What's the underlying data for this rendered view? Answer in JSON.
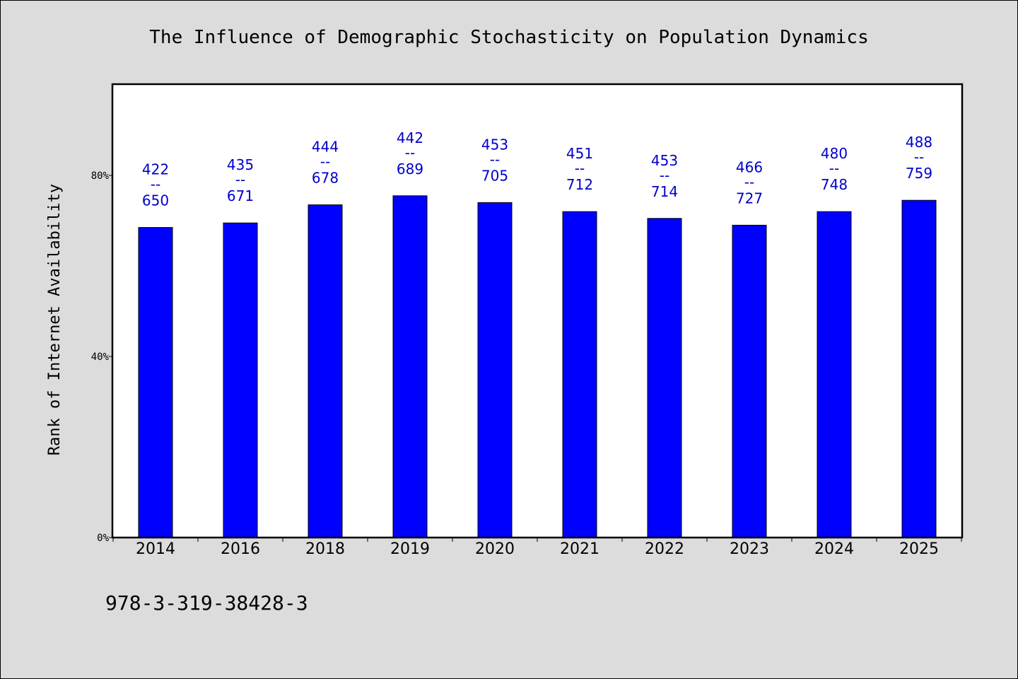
{
  "chart_data": {
    "type": "bar",
    "title": "The Influence of Demographic Stochasticity on Population Dynamics",
    "ylabel": "Rank of Internet Availability",
    "xlabel": "",
    "categories": [
      "2014",
      "2016",
      "2018",
      "2019",
      "2020",
      "2021",
      "2022",
      "2023",
      "2024",
      "2025"
    ],
    "values": [
      68.5,
      69.5,
      73.5,
      75.5,
      74,
      72,
      70.5,
      69,
      72,
      74.5
    ],
    "data_labels": [
      {
        "top": "422",
        "mid": "--",
        "bottom": "650"
      },
      {
        "top": "435",
        "mid": "--",
        "bottom": "671"
      },
      {
        "top": "444",
        "mid": "--",
        "bottom": "678"
      },
      {
        "top": "442",
        "mid": "--",
        "bottom": "689"
      },
      {
        "top": "453",
        "mid": "--",
        "bottom": "705"
      },
      {
        "top": "451",
        "mid": "--",
        "bottom": "712"
      },
      {
        "top": "453",
        "mid": "--",
        "bottom": "714"
      },
      {
        "top": "466",
        "mid": "--",
        "bottom": "727"
      },
      {
        "top": "480",
        "mid": "--",
        "bottom": "748"
      },
      {
        "top": "488",
        "mid": "--",
        "bottom": "759"
      }
    ],
    "ylim": [
      0,
      100
    ],
    "yticks": [
      0,
      40,
      80
    ],
    "ytick_labels": [
      "0%",
      "40%",
      "80%"
    ],
    "grid": false,
    "bar_color": "#0000ff",
    "label_color": "#0000cc",
    "plot_background": "#ffffff",
    "page_background": "#dcdcdc"
  },
  "footnote": "978-3-319-38428-3"
}
